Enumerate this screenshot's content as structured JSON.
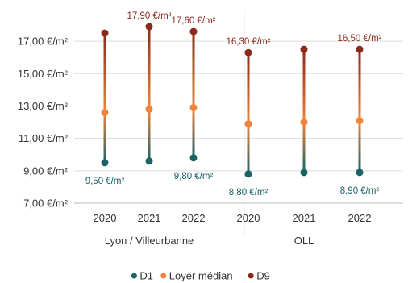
{
  "chart_data": {
    "type": "range-dot",
    "y_unit": "€/m²",
    "ylim": [
      7,
      18.5
    ],
    "y_ticks": [
      "7,00 €/m²",
      "9,00 €/m²",
      "11,00 €/m²",
      "13,00 €/m²",
      "15,00 €/m²",
      "17,00 €/m²"
    ],
    "y_tick_values": [
      7,
      9,
      11,
      13,
      15,
      17
    ],
    "grid": true,
    "legend_position": "bottom",
    "groups": [
      {
        "label": "Lyon / Villeurbanne",
        "categories": [
          "2020",
          "2021",
          "2022"
        ],
        "d1": [
          9.5,
          9.6,
          9.8
        ],
        "median": [
          12.6,
          12.8,
          12.9
        ],
        "d9": [
          17.5,
          17.9,
          17.6
        ],
        "d1_labels": [
          "9,50 €/m²",
          "",
          "9,80 €/m²"
        ],
        "d9_labels": [
          "",
          "17,90 €/m²",
          "17,60 €/m²"
        ]
      },
      {
        "label": "OLL",
        "categories": [
          "2020",
          "2021",
          "2022"
        ],
        "d1": [
          8.8,
          8.9,
          8.9
        ],
        "median": [
          11.9,
          12.0,
          12.1
        ],
        "d9": [
          16.3,
          16.5,
          16.5
        ],
        "d1_labels": [
          "8,80 €/m²",
          "",
          "8,90 €/m²"
        ],
        "d9_labels": [
          "16,30 €/m²",
          "",
          "16,50 €/m²"
        ]
      }
    ],
    "legend": [
      {
        "key": "d1",
        "label": "D1",
        "color": "#1a6366"
      },
      {
        "key": "median",
        "label": "Loyer médian",
        "color": "#f0843c"
      },
      {
        "key": "d9",
        "label": "D9",
        "color": "#8b2a1c"
      }
    ],
    "colors": {
      "d1": "#1a6366",
      "median": "#f0843c",
      "d9": "#8b2a1c",
      "grid": "#dcdcdc"
    }
  }
}
